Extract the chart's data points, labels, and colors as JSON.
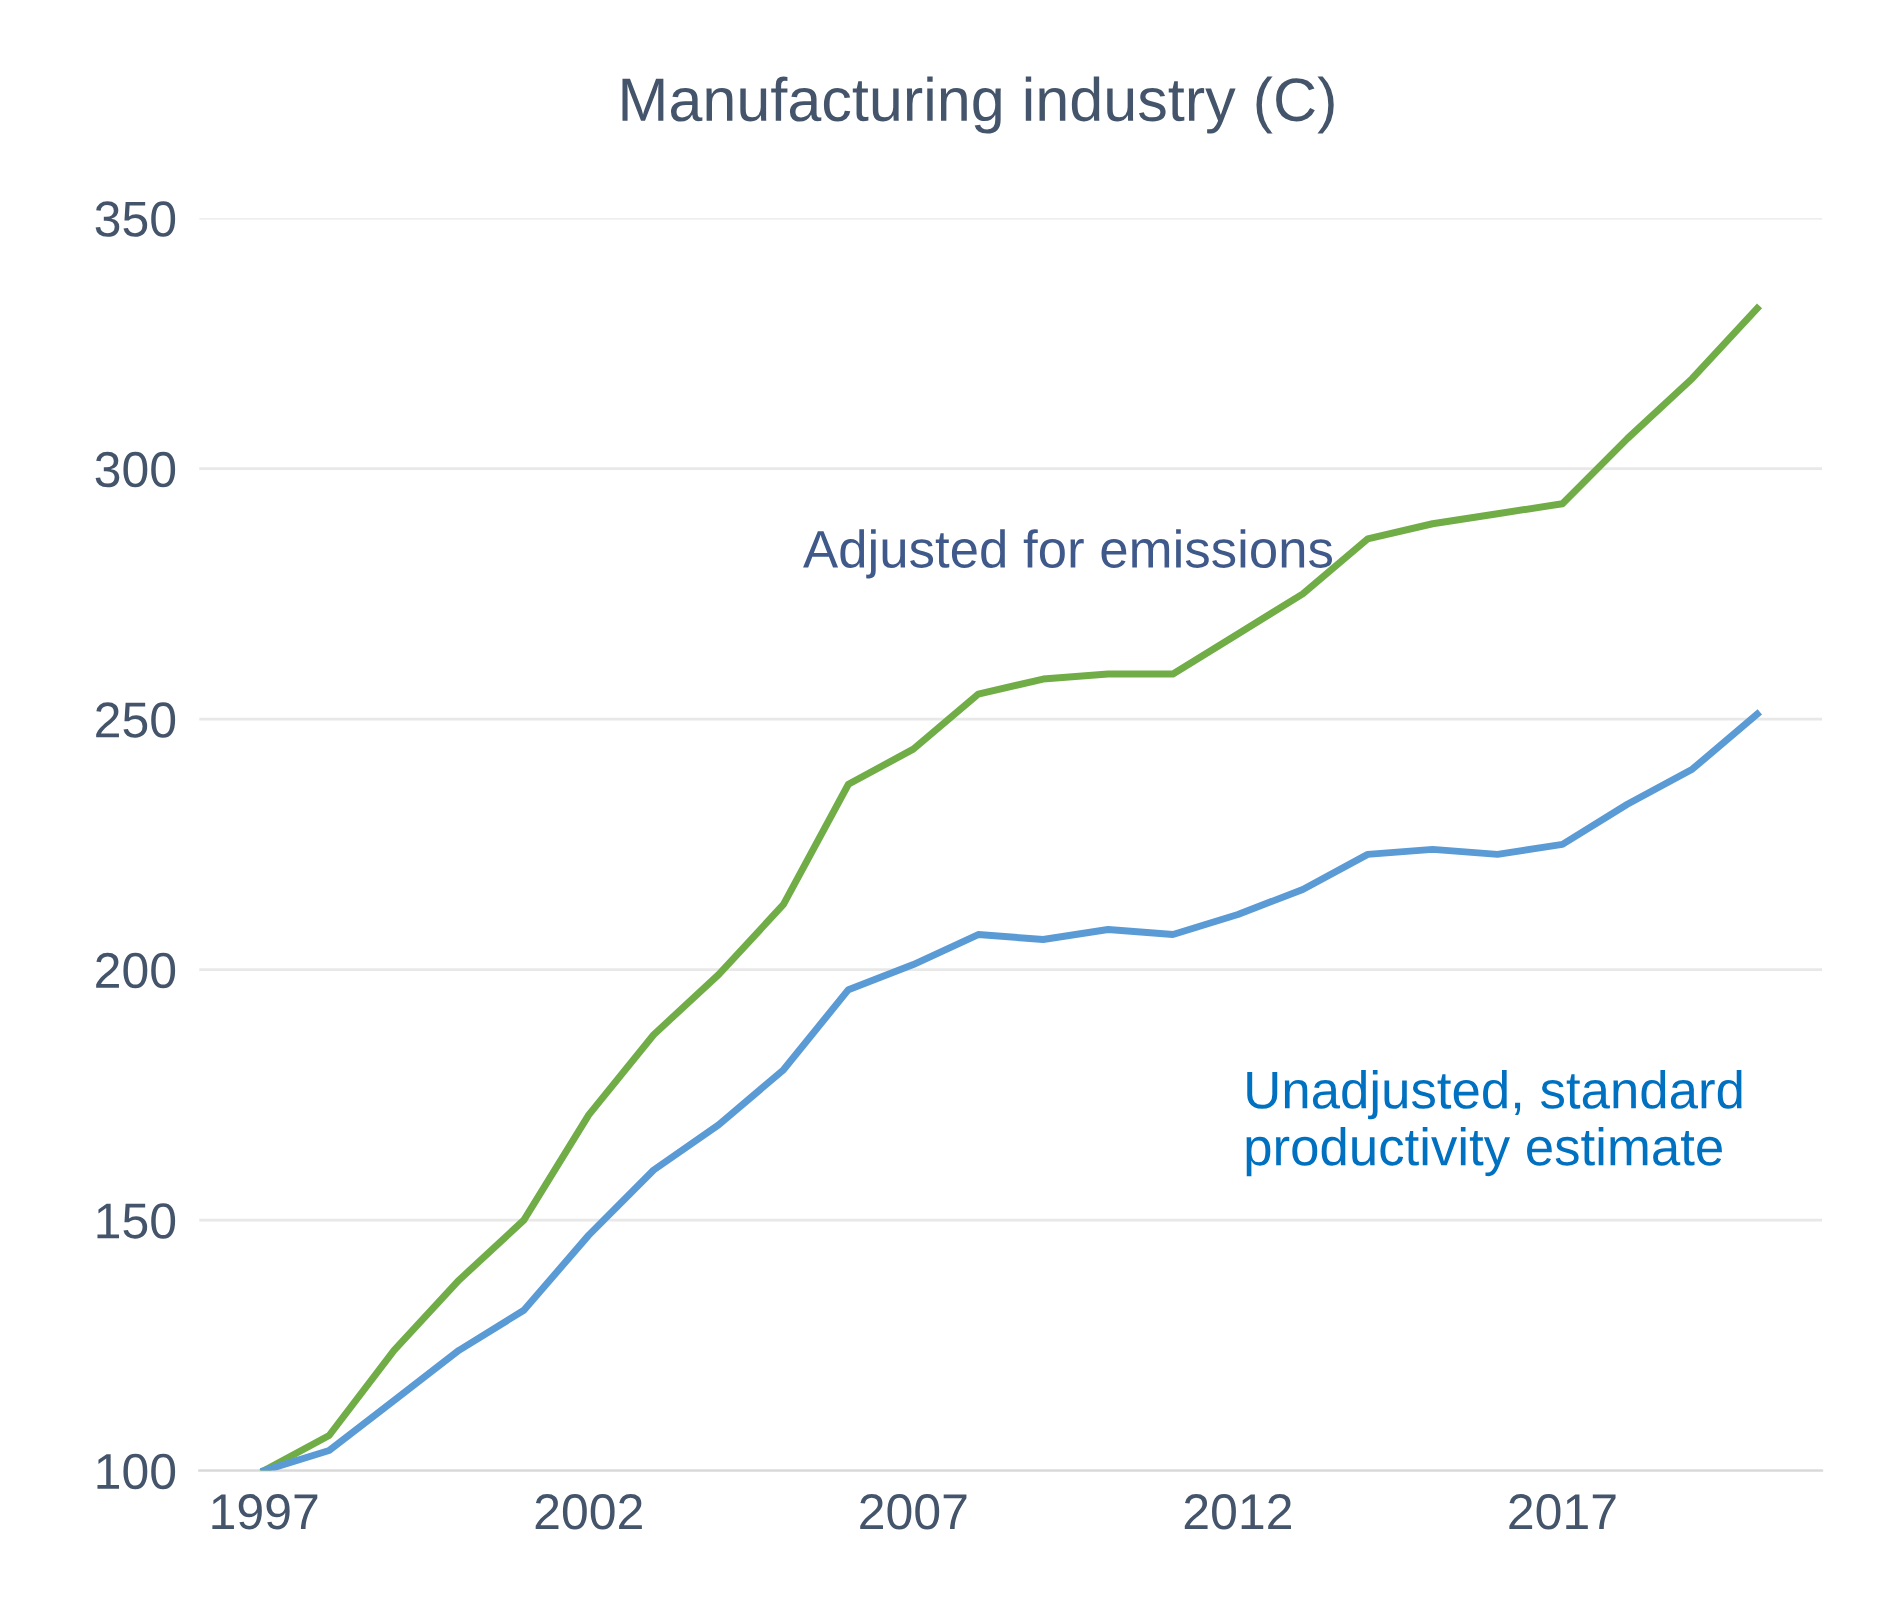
{
  "chart_data": {
    "type": "line",
    "title": "Manufacturing industry (C)",
    "x": [
      1997,
      1998,
      1999,
      2000,
      2001,
      2002,
      2003,
      2004,
      2005,
      2006,
      2007,
      2008,
      2009,
      2010,
      2011,
      2012,
      2013,
      2014,
      2015,
      2016,
      2017,
      2018,
      2019,
      2020
    ],
    "series": [
      {
        "name": "Adjusted for emissions",
        "color": "#70ad47",
        "values": [
          100,
          107,
          124,
          138,
          150,
          171,
          187,
          199,
          213,
          237,
          244,
          255,
          258,
          259,
          259,
          267,
          275,
          286,
          289,
          291,
          293,
          306,
          318,
          332
        ]
      },
      {
        "name": "Unadjusted, standard productivity estimate",
        "color": "#5b9bd5",
        "values": [
          100,
          104,
          114,
          124,
          132,
          147,
          160,
          169,
          180,
          196,
          201,
          207,
          206,
          208,
          207,
          211,
          216,
          223,
          224,
          223,
          225,
          233,
          240,
          251
        ]
      }
    ],
    "xlim": [
      1996,
      2021
    ],
    "xticks": [
      1997,
      2002,
      2007,
      2012,
      2017
    ],
    "ylim": [
      100,
      350
    ],
    "yticks": [
      100,
      150,
      200,
      250,
      300,
      350
    ],
    "grid": "y",
    "legend": false,
    "marker": "none",
    "line_style": "solid"
  }
}
